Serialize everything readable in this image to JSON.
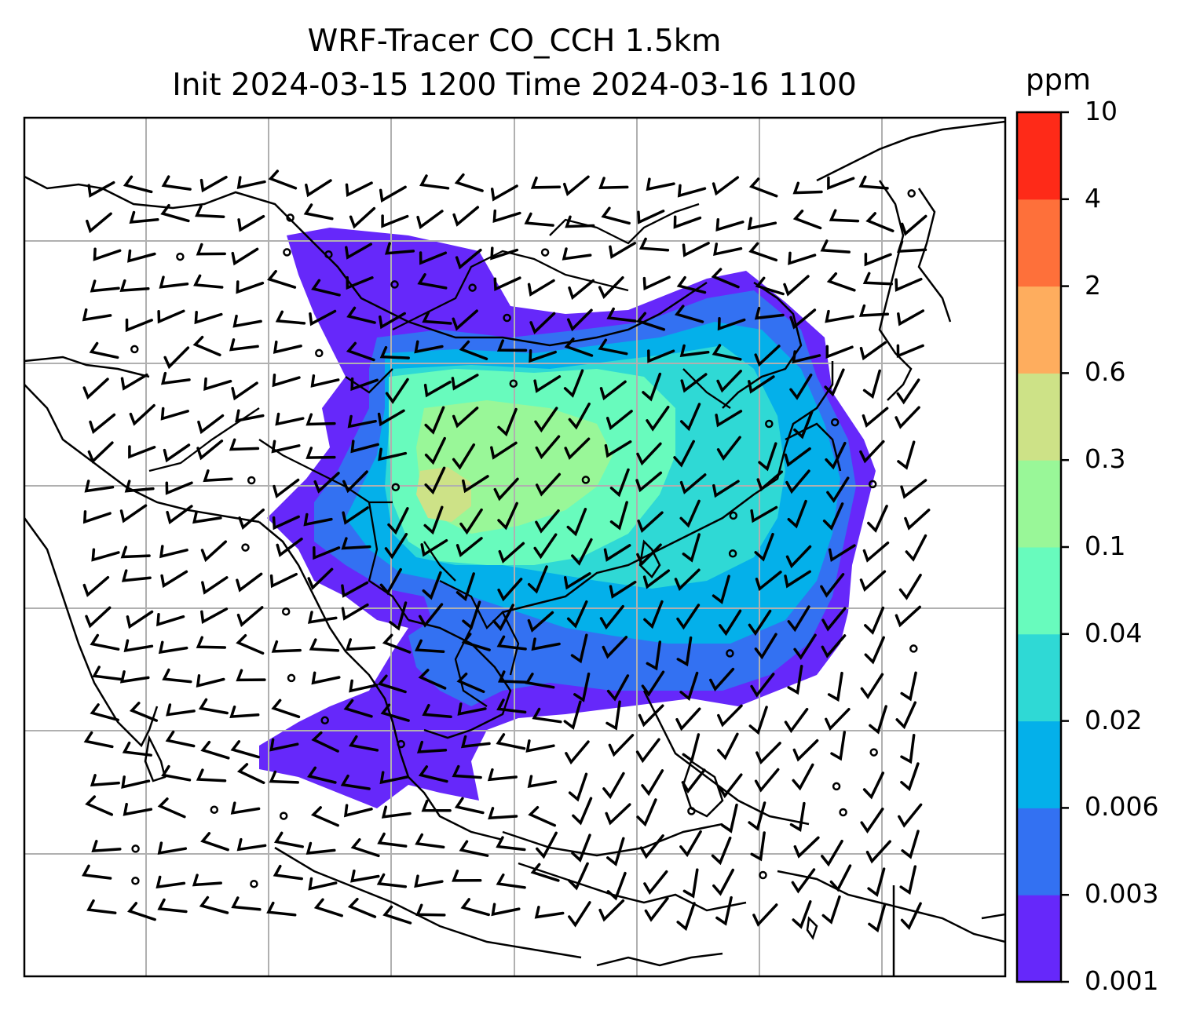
{
  "title": {
    "line1": "WRF-Tracer CO_CCH 1.5km",
    "line2": "Init 2024-03-15 1200 Time 2024-03-16 1100"
  },
  "colorbar": {
    "unit": "ppm",
    "levels": [
      "0.001",
      "0.003",
      "0.006",
      "0.02",
      "0.04",
      "0.1",
      "0.3",
      "0.6",
      "2",
      "4",
      "10"
    ],
    "colors": [
      "#6628fa",
      "#3371f2",
      "#04b0ea",
      "#2fd9d5",
      "#68fbbd",
      "#99f798",
      "#cde287",
      "#fead5e",
      "#fe703a",
      "#fe2a18"
    ]
  },
  "map": {
    "layers": [
      "coastlines",
      "country-borders",
      "gridlines",
      "co-concentration-fill",
      "wind-barbs"
    ],
    "gridline_color": "#b0b0b0"
  }
}
